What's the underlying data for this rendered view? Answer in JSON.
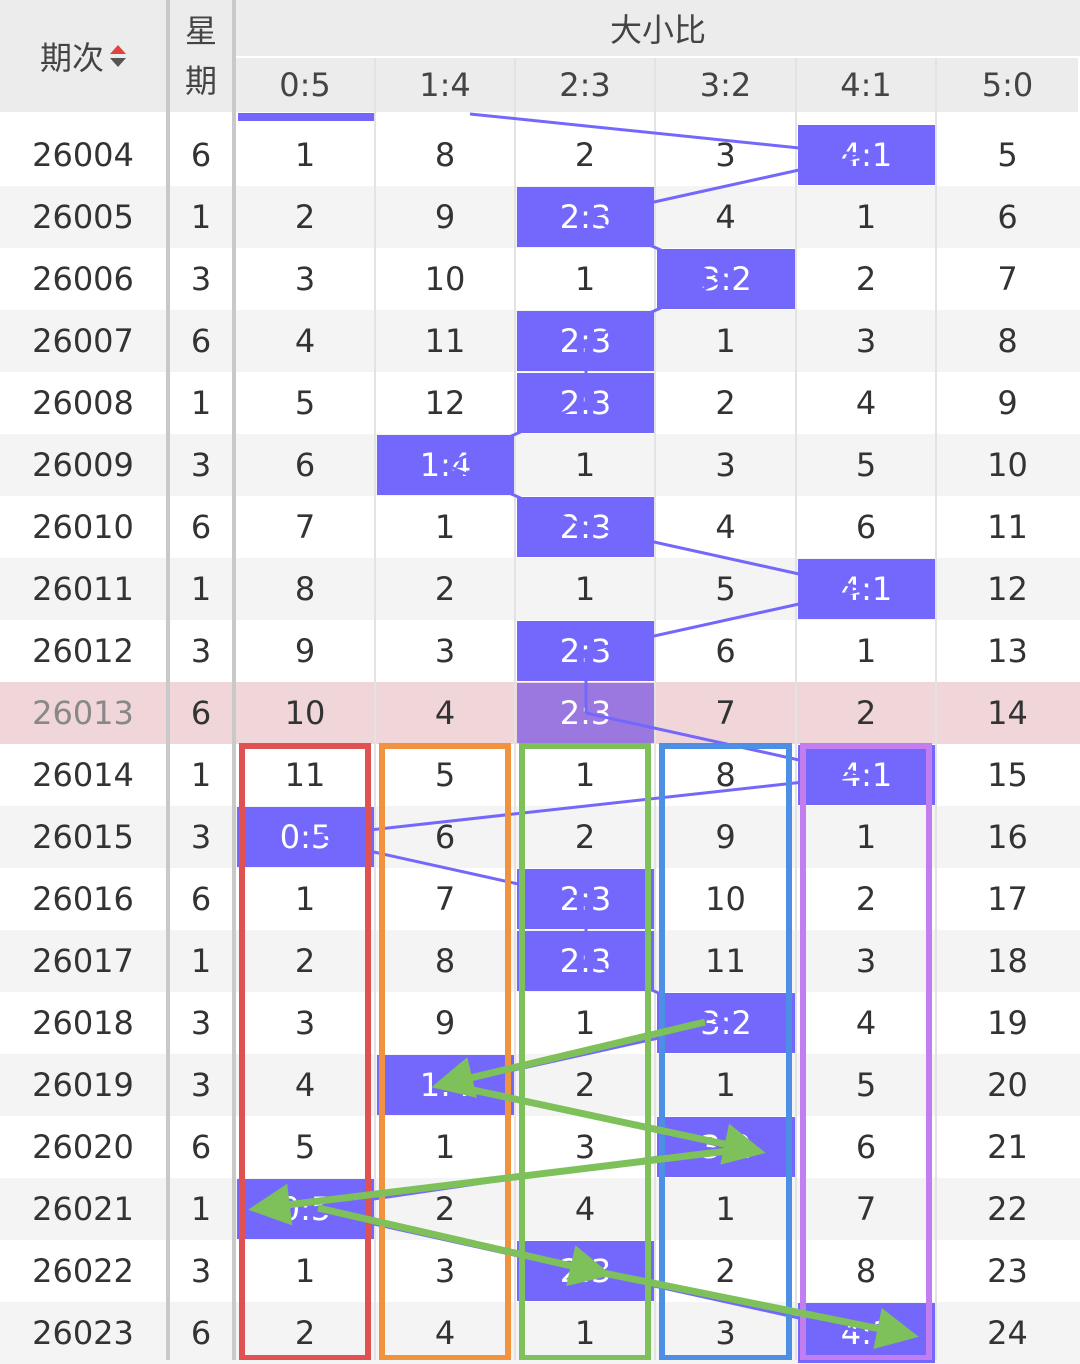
{
  "header": {
    "period_label": "期次",
    "week_label_1": "星",
    "week_label_2": "期",
    "group_label": "大小比",
    "columns": [
      "0:5",
      "1:4",
      "2:3",
      "3:2",
      "4:1",
      "5:0"
    ]
  },
  "colors": {
    "highlight": "#7368fb",
    "line": "#7368fb",
    "arrow": "#7ec05a",
    "current_row": "#f1d6d9",
    "alt_row": "#f4f4f4",
    "header_bg": "#ececec",
    "sort_up": "#e0433e",
    "sort_down": "#555555",
    "box_colors": [
      "#e05252",
      "#f0923e",
      "#7ec05a",
      "#4e8fe6",
      "#c27ef0"
    ]
  },
  "icons": {
    "sort": "sort-updown-icon"
  },
  "highlight_row_period": "26013",
  "rows": [
    {
      "period": "26004",
      "week": "6",
      "values": [
        "1",
        "8",
        "2",
        "3",
        "4:1",
        "5"
      ],
      "hit": 4
    },
    {
      "period": "26005",
      "week": "1",
      "values": [
        "2",
        "9",
        "2:3",
        "4",
        "1",
        "6"
      ],
      "hit": 2
    },
    {
      "period": "26006",
      "week": "3",
      "values": [
        "3",
        "10",
        "1",
        "3:2",
        "2",
        "7"
      ],
      "hit": 3
    },
    {
      "period": "26007",
      "week": "6",
      "values": [
        "4",
        "11",
        "2:3",
        "1",
        "3",
        "8"
      ],
      "hit": 2
    },
    {
      "period": "26008",
      "week": "1",
      "values": [
        "5",
        "12",
        "2:3",
        "2",
        "4",
        "9"
      ],
      "hit": 2
    },
    {
      "period": "26009",
      "week": "3",
      "values": [
        "6",
        "1:4",
        "1",
        "3",
        "5",
        "10"
      ],
      "hit": 1
    },
    {
      "period": "26010",
      "week": "6",
      "values": [
        "7",
        "1",
        "2:3",
        "4",
        "6",
        "11"
      ],
      "hit": 2
    },
    {
      "period": "26011",
      "week": "1",
      "values": [
        "8",
        "2",
        "1",
        "5",
        "4:1",
        "12"
      ],
      "hit": 4
    },
    {
      "period": "26012",
      "week": "3",
      "values": [
        "9",
        "3",
        "2:3",
        "6",
        "1",
        "13"
      ],
      "hit": 2
    },
    {
      "period": "26013",
      "week": "6",
      "values": [
        "10",
        "4",
        "2:3",
        "7",
        "2",
        "14"
      ],
      "hit": 2
    },
    {
      "period": "26014",
      "week": "1",
      "values": [
        "11",
        "5",
        "1",
        "8",
        "4:1",
        "15"
      ],
      "hit": 4
    },
    {
      "period": "26015",
      "week": "3",
      "values": [
        "0:5",
        "6",
        "2",
        "9",
        "1",
        "16"
      ],
      "hit": 0
    },
    {
      "period": "26016",
      "week": "6",
      "values": [
        "1",
        "7",
        "2:3",
        "10",
        "2",
        "17"
      ],
      "hit": 2
    },
    {
      "period": "26017",
      "week": "1",
      "values": [
        "2",
        "8",
        "2:3",
        "11",
        "3",
        "18"
      ],
      "hit": 2
    },
    {
      "period": "26018",
      "week": "3",
      "values": [
        "3",
        "9",
        "1",
        "3:2",
        "4",
        "19"
      ],
      "hit": 3
    },
    {
      "period": "26019",
      "week": "3",
      "values": [
        "4",
        "1:4",
        "2",
        "1",
        "5",
        "20"
      ],
      "hit": 1
    },
    {
      "period": "26020",
      "week": "6",
      "values": [
        "5",
        "1",
        "3",
        "3:2",
        "6",
        "21"
      ],
      "hit": 3
    },
    {
      "period": "26021",
      "week": "1",
      "values": [
        "0:5",
        "2",
        "4",
        "1",
        "7",
        "22"
      ],
      "hit": 0
    },
    {
      "period": "26022",
      "week": "3",
      "values": [
        "1",
        "3",
        "2:3",
        "2",
        "8",
        "23"
      ],
      "hit": 2
    },
    {
      "period": "26023",
      "week": "6",
      "values": [
        "2",
        "4",
        "1",
        "3",
        "4:1",
        "24"
      ],
      "hit": 4
    }
  ]
}
